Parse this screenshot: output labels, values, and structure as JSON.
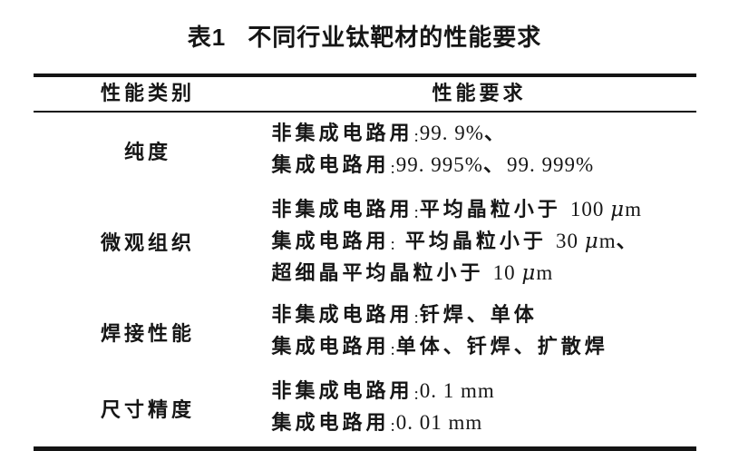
{
  "title": {
    "index": "表1",
    "text": "不同行业钛靶材的性能要求"
  },
  "table": {
    "headers": [
      "性能类别",
      "性能要求"
    ],
    "rows": [
      {
        "category": "纯度",
        "lines": [
          "非集成电路用:99. 9%、",
          "集成电路用:99. 995%、99. 999%"
        ]
      },
      {
        "category": "微观组织",
        "lines": [
          "非集成电路用:平均晶粒小于 100 μm",
          "集成电路用: 平均晶粒小于 30 μm、",
          "超细晶平均晶粒小于 10 μm"
        ]
      },
      {
        "category": "焊接性能",
        "lines": [
          "非集成电路用:钎焊、单体",
          "集成电路用:单体、钎焊、扩散焊"
        ]
      },
      {
        "category": "尺寸精度",
        "lines": [
          "非集成电路用:0. 1 mm",
          "集成电路用:0. 01 mm"
        ]
      }
    ]
  },
  "colors": {
    "text": "#161616",
    "rule": "#141414",
    "background": "#ffffff"
  }
}
